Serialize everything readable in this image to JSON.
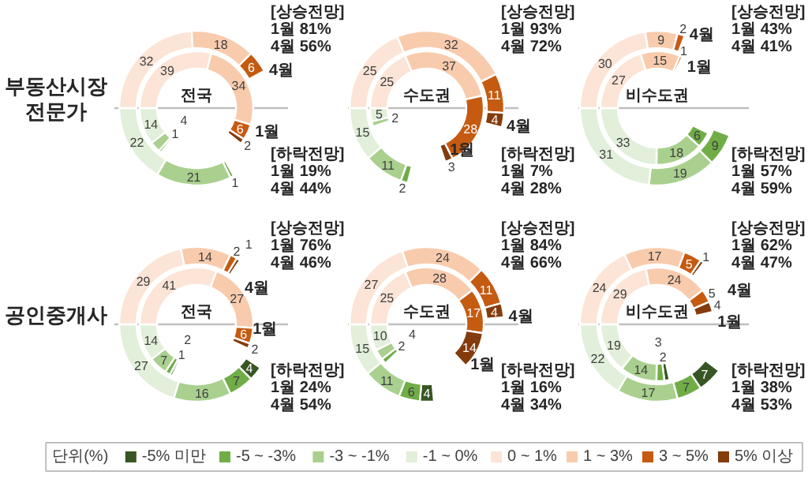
{
  "chart_data": [
    {
      "type": "donut",
      "title": "전국",
      "subtitle": "부동산시장 전문가",
      "categories": [
        "-5% 미만",
        "-5 ~ -3%",
        "-3 ~ -1%",
        "-1 ~ 0%",
        "0 ~ 1%",
        "1 ~ 3%",
        "3 ~ 5%",
        "5% 이상"
      ],
      "colors": [
        "#375623",
        "#70ad47",
        "#a9d08e",
        "#e2efda",
        "#fce4d6",
        "#f8cbad",
        "#c55a11",
        "#843c0c"
      ],
      "series": [
        {
          "name": "4월",
          "values": [
            null,
            1,
            21,
            22,
            32,
            18,
            6,
            null
          ]
        },
        {
          "name": "1월",
          "values": [
            null,
            1,
            4,
            14,
            39,
            34,
            6,
            2
          ]
        }
      ],
      "annotations": [
        "[상승전망]\n1월 81%\n4월 56%",
        "[하락전망]\n1월 19%\n4월 44%"
      ],
      "data_labels": true,
      "legend": "bottom",
      "legend_title": "단위(%)"
    },
    {
      "type": "donut",
      "title": "수도권",
      "colors": [
        "#375623",
        "#70ad47",
        "#a9d08e",
        "#e2efda",
        "#fce4d6",
        "#f8cbad",
        "#c55a11",
        "#843c0c"
      ],
      "series": [
        {
          "name": "4월",
          "values": [
            null,
            2,
            11,
            15,
            25,
            32,
            11,
            4
          ]
        },
        {
          "name": "1월",
          "values": [
            null,
            null,
            2,
            5,
            25,
            37,
            28,
            3
          ]
        }
      ],
      "annotations": [
        "[상승전망]\n1월 93%\n4월 72%",
        "[하락전망]\n1월 7%\n4월 28%"
      ],
      "data_labels": true
    },
    {
      "type": "donut",
      "title": "비수도권",
      "colors": [
        "#375623",
        "#70ad47",
        "#a9d08e",
        "#e2efda",
        "#fce4d6",
        "#f8cbad",
        "#c55a11",
        "#843c0c"
      ],
      "series": [
        {
          "name": "4월",
          "values": [
            null,
            9,
            19,
            31,
            30,
            9,
            2,
            null
          ]
        },
        {
          "name": "1월",
          "values": [
            null,
            6,
            18,
            33,
            27,
            15,
            1,
            null
          ]
        }
      ],
      "annotations": [
        "[상승전망]\n1월 43%\n4월 41%",
        "[하락전망]\n1월 57%\n4월 59%"
      ],
      "data_labels": true
    },
    {
      "type": "donut",
      "title": "전국",
      "subtitle": "공인중개사",
      "colors": [
        "#375623",
        "#70ad47",
        "#a9d08e",
        "#e2efda",
        "#fce4d6",
        "#f8cbad",
        "#c55a11",
        "#843c0c"
      ],
      "series": [
        {
          "name": "4월",
          "values": [
            4,
            7,
            16,
            27,
            29,
            14,
            2,
            1
          ]
        },
        {
          "name": "1월",
          "values": [
            1,
            2,
            7,
            14,
            41,
            27,
            6,
            2
          ]
        }
      ],
      "annotations": [
        "[상승전망]\n1월 76%\n4월 46%",
        "[하락전망]\n1월 24%\n4월 54%"
      ],
      "data_labels": true
    },
    {
      "type": "donut",
      "title": "수도권",
      "colors": [
        "#375623",
        "#70ad47",
        "#a9d08e",
        "#e2efda",
        "#fce4d6",
        "#f8cbad",
        "#c55a11",
        "#843c0c"
      ],
      "series": [
        {
          "name": "4월",
          "values": [
            4,
            6,
            11,
            15,
            27,
            24,
            11,
            4
          ]
        },
        {
          "name": "1월",
          "values": [
            null,
            2,
            4,
            10,
            25,
            28,
            17,
            14
          ]
        }
      ],
      "annotations": [
        "[상승전망]\n1월 84%\n4월 66%",
        "[하락전망]\n1월 16%\n4월 34%"
      ],
      "data_labels": true
    },
    {
      "type": "donut",
      "title": "비수도권",
      "colors": [
        "#375623",
        "#70ad47",
        "#a9d08e",
        "#e2efda",
        "#fce4d6",
        "#f8cbad",
        "#c55a11",
        "#843c0c"
      ],
      "series": [
        {
          "name": "4월",
          "values": [
            7,
            7,
            17,
            22,
            24,
            17,
            5,
            1
          ]
        },
        {
          "name": "1월",
          "values": [
            2,
            3,
            14,
            19,
            29,
            24,
            5,
            4
          ]
        }
      ],
      "annotations": [
        "[상승전망]\n1월 62%\n4월 47%",
        "[하락전망]\n1월 38%\n4월 53%"
      ],
      "data_labels": true
    }
  ]
}
